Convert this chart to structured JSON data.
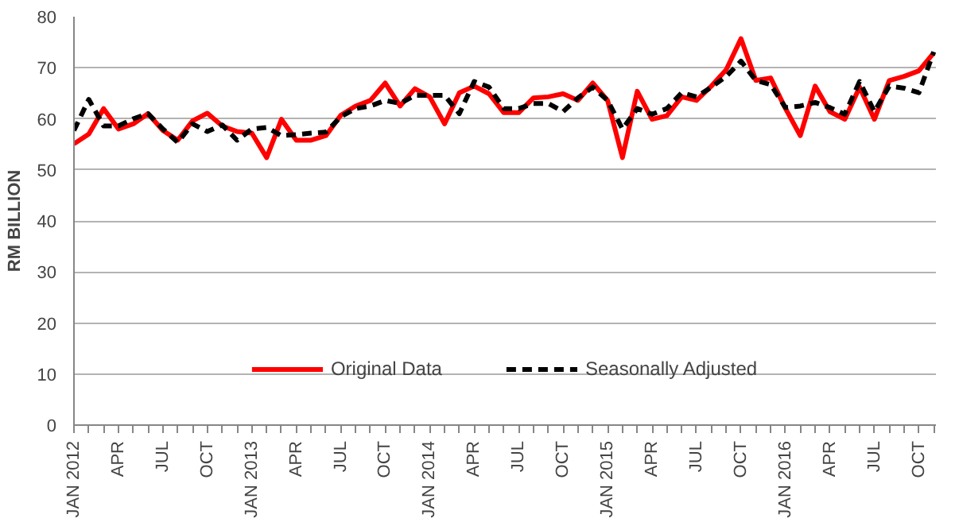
{
  "chart_data": {
    "type": "line",
    "ylabel": "RM BILLION",
    "categories": [
      "JAN 2012",
      null,
      null,
      "APR",
      null,
      null,
      "JUL",
      null,
      null,
      "OCT",
      null,
      null,
      "JAN 2013",
      null,
      null,
      "APR",
      null,
      null,
      "JUL",
      null,
      null,
      "OCT",
      null,
      null,
      "JAN 2014",
      null,
      null,
      "APR",
      null,
      null,
      "JUL",
      null,
      null,
      "OCT",
      null,
      null,
      "JAN 2015",
      null,
      null,
      "APR",
      null,
      null,
      "JUL",
      null,
      null,
      "OCT",
      null,
      null,
      "JAN 2016",
      null,
      null,
      "APR",
      null,
      null,
      "JUL",
      null,
      null,
      "OCT",
      null
    ],
    "series": [
      {
        "name": "Original Data",
        "color": "#ff0000",
        "line_style": "solid",
        "values": [
          55.1,
          57,
          62,
          58,
          59,
          61,
          57.7,
          55.8,
          59.6,
          61.1,
          58.6,
          57.5,
          57.2,
          52.4,
          59.9,
          55.8,
          55.8,
          56.7,
          60.7,
          62.5,
          63.6,
          67,
          62.5,
          65.9,
          64.3,
          59,
          65.1,
          66.4,
          64.9,
          61.2,
          61.2,
          64.1,
          64.3,
          64.9,
          63.6,
          67,
          63.6,
          52.4,
          65.4,
          59.9,
          60.6,
          64.3,
          63.6,
          66.4,
          69.6,
          75.7,
          67.5,
          68,
          62,
          56.7,
          66.4,
          61.4,
          59.9,
          66.2,
          59.9,
          67.5,
          68.3,
          69.4,
          72.9
        ]
      },
      {
        "name": "Seasonally Adjusted",
        "color": "#000000",
        "line_style": "dashed",
        "values": [
          57.7,
          63.8,
          58.6,
          58.6,
          60,
          61,
          58,
          55.4,
          59,
          57.5,
          58.8,
          55.8,
          58,
          58.3,
          56.7,
          56.9,
          57.2,
          57.4,
          60.4,
          62,
          62.5,
          63.6,
          63,
          64.6,
          64.6,
          64.6,
          61,
          67.3,
          66.2,
          62,
          62,
          63,
          63,
          61.4,
          64.1,
          66.2,
          63.6,
          58,
          62,
          60.9,
          62,
          65.1,
          64.3,
          66.2,
          68.3,
          71.3,
          67.5,
          66.7,
          62.2,
          62.5,
          63.2,
          62.2,
          60.9,
          67.3,
          61.4,
          66.4,
          66,
          65.1,
          73.1
        ]
      }
    ],
    "ylim": [
      0,
      80
    ],
    "yticks": [
      0,
      10,
      20,
      30,
      40,
      50,
      60,
      70,
      80
    ],
    "grid": "y",
    "legend": "bottom",
    "marker": "none"
  }
}
